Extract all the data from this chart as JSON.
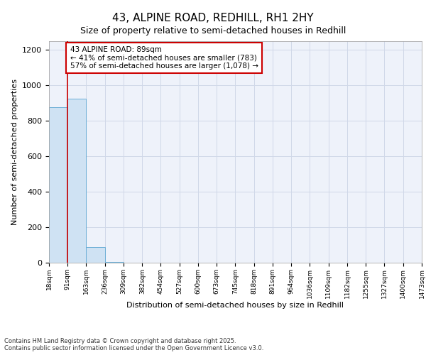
{
  "title1": "43, ALPINE ROAD, REDHILL, RH1 2HY",
  "title2": "Size of property relative to semi-detached houses in Redhill",
  "xlabel": "Distribution of semi-detached houses by size in Redhill",
  "ylabel": "Number of semi-detached properties",
  "bin_edges": [
    18,
    91,
    163,
    236,
    309,
    382,
    454,
    527,
    600,
    673,
    745,
    818,
    891,
    964,
    1036,
    1109,
    1182,
    1255,
    1327,
    1400,
    1473
  ],
  "bar_heights": [
    875,
    925,
    90,
    3,
    1,
    0,
    0,
    0,
    0,
    0,
    0,
    0,
    0,
    0,
    0,
    0,
    0,
    0,
    0,
    0
  ],
  "bar_color": "#cfe2f3",
  "bar_edge_color": "#6baed6",
  "property_size": 89,
  "property_line_color": "#cc0000",
  "annotation_line1": "43 ALPINE ROAD: 89sqm",
  "annotation_line2": "← 41% of semi-detached houses are smaller (783)",
  "annotation_line3": "57% of semi-detached houses are larger (1,078) →",
  "annotation_box_color": "#cc0000",
  "ylim": [
    0,
    1250
  ],
  "yticks": [
    0,
    200,
    400,
    600,
    800,
    1000,
    1200
  ],
  "footer": "Contains HM Land Registry data © Crown copyright and database right 2025.\nContains public sector information licensed under the Open Government Licence v3.0.",
  "grid_color": "#d0d8e8",
  "background_color": "#eef2fa",
  "title1_fontsize": 11,
  "title2_fontsize": 9,
  "bar_fontsize": 7,
  "ylabel_fontsize": 8,
  "xlabel_fontsize": 8
}
